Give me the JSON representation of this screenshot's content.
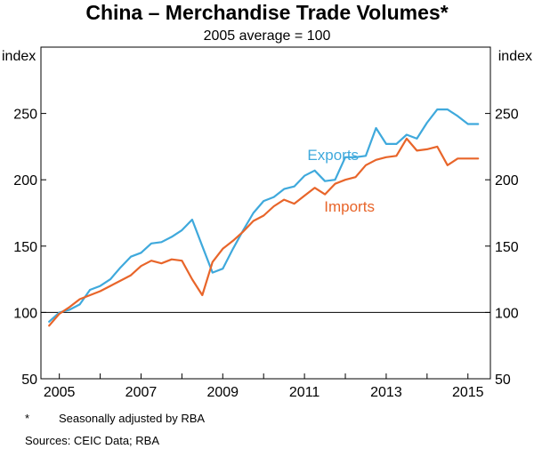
{
  "chart_data": {
    "type": "line",
    "title": "China – Merchandise Trade Volumes*",
    "subtitle": "2005 average = 100",
    "ylabel_left": "index",
    "ylabel_right": "index",
    "xlim": [
      2004.55,
      2015.55
    ],
    "ylim": [
      50,
      300
    ],
    "yticks": [
      50,
      100,
      150,
      200,
      250
    ],
    "ytick_labels": [
      "50",
      "100",
      "150",
      "200",
      "250"
    ],
    "xticks": [
      2005,
      2007,
      2009,
      2011,
      2013,
      2015
    ],
    "xtick_labels": [
      "2005",
      "2007",
      "2009",
      "2011",
      "2013",
      "2015"
    ],
    "reference_line": 100,
    "grid": false,
    "series": [
      {
        "name": "Exports",
        "color": "#3fa9dc",
        "x": [
          2004.75,
          2005.0,
          2005.25,
          2005.5,
          2005.75,
          2006.0,
          2006.25,
          2006.5,
          2006.75,
          2007.0,
          2007.25,
          2007.5,
          2007.75,
          2008.0,
          2008.25,
          2008.5,
          2008.75,
          2009.0,
          2009.25,
          2009.5,
          2009.75,
          2010.0,
          2010.25,
          2010.5,
          2010.75,
          2011.0,
          2011.25,
          2011.5,
          2011.75,
          2012.0,
          2012.25,
          2012.5,
          2012.75,
          2013.0,
          2013.25,
          2013.5,
          2013.75,
          2014.0,
          2014.25,
          2014.5,
          2014.75,
          2015.0,
          2015.25
        ],
        "values": [
          93,
          100,
          102,
          106,
          117,
          120,
          125,
          134,
          142,
          145,
          152,
          153,
          157,
          162,
          170,
          150,
          130,
          133,
          148,
          162,
          175,
          184,
          187,
          193,
          195,
          203,
          207,
          199,
          200,
          217,
          217,
          218,
          239,
          227,
          227,
          234,
          231,
          243,
          253,
          253,
          248,
          242,
          242
        ]
      },
      {
        "name": "Imports",
        "color": "#e8652a",
        "x": [
          2004.75,
          2005.0,
          2005.25,
          2005.5,
          2005.75,
          2006.0,
          2006.25,
          2006.5,
          2006.75,
          2007.0,
          2007.25,
          2007.5,
          2007.75,
          2008.0,
          2008.25,
          2008.5,
          2008.75,
          2009.0,
          2009.25,
          2009.5,
          2009.75,
          2010.0,
          2010.25,
          2010.5,
          2010.75,
          2011.0,
          2011.25,
          2011.5,
          2011.75,
          2012.0,
          2012.25,
          2012.5,
          2012.75,
          2013.0,
          2013.25,
          2013.5,
          2013.75,
          2014.0,
          2014.25,
          2014.5,
          2014.75,
          2015.0,
          2015.25
        ],
        "values": [
          90,
          99,
          104,
          110,
          113,
          116,
          120,
          124,
          128,
          135,
          139,
          137,
          140,
          139,
          125,
          113,
          138,
          148,
          154,
          161,
          169,
          173,
          180,
          185,
          182,
          188,
          194,
          189,
          197,
          200,
          202,
          211,
          215,
          217,
          218,
          231,
          222,
          223,
          225,
          211,
          216,
          216,
          216
        ]
      }
    ],
    "series_labels": [
      {
        "name": "Exports",
        "x": 2011.7,
        "y": 215
      },
      {
        "name": "Imports",
        "x": 2012.1,
        "y": 176
      }
    ]
  },
  "footnotes": {
    "star_mark": "*",
    "star_text": "Seasonally adjusted by RBA",
    "sources": "Sources:   CEIC Data; RBA"
  }
}
